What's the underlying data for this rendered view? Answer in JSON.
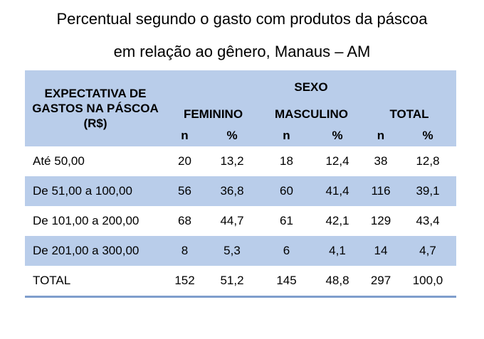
{
  "title": {
    "line1": "Percentual segundo o gasto com produtos da páscoa",
    "line2": "em relação ao gênero, Manaus – AM"
  },
  "table": {
    "row_header": "EXPECTATIVA DE GASTOS NA PÁSCOA (R$)",
    "group_header": "SEXO",
    "groups": [
      "FEMININO",
      "MASCULINO",
      "TOTAL"
    ],
    "subheaders": [
      "n",
      "%",
      "n",
      "%",
      "n",
      "%"
    ],
    "rows": [
      {
        "label": "Até 50,00",
        "values": [
          "20",
          "13,2",
          "18",
          "12,4",
          "38",
          "12,8"
        ]
      },
      {
        "label": "De 51,00 a 100,00",
        "values": [
          "56",
          "36,8",
          "60",
          "41,4",
          "116",
          "39,1"
        ]
      },
      {
        "label": "De 101,00 a 200,00",
        "values": [
          "68",
          "44,7",
          "61",
          "42,1",
          "129",
          "43,4"
        ]
      },
      {
        "label": "De 201,00 a 300,00",
        "values": [
          "8",
          "5,3",
          "6",
          "4,1",
          "14",
          "4,7"
        ]
      },
      {
        "label": "TOTAL",
        "values": [
          "152",
          "51,2",
          "145",
          "48,8",
          "297",
          "100,0"
        ]
      }
    ]
  },
  "colors": {
    "header_fill": "#b9cdea",
    "stripe_fill": "#b9cdea",
    "bottom_rule": "#7f9ecc"
  }
}
